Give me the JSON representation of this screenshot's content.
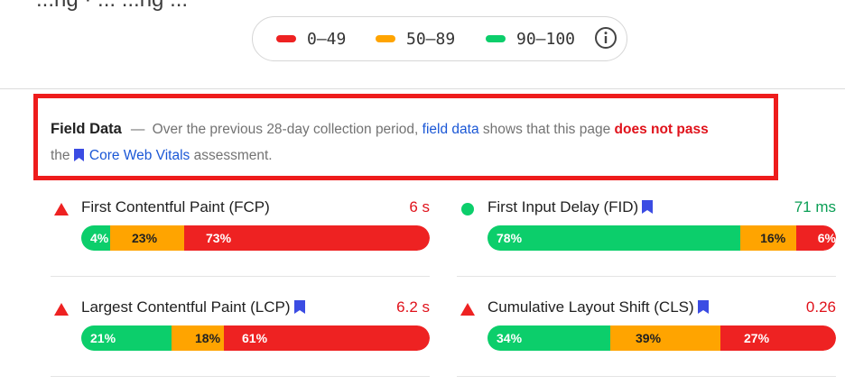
{
  "header_fragment": "...ng · ... ...ng ...",
  "legend": {
    "items": [
      {
        "label": "0–49",
        "color": "#ee2222"
      },
      {
        "label": "50–89",
        "color": "#ffa400"
      },
      {
        "label": "90–100",
        "color": "#0cce6b"
      }
    ],
    "info_icon": "info-icon"
  },
  "field_data": {
    "title": "Field Data",
    "dash": "—",
    "text_before_link": "Over the previous 28-day collection period,",
    "link_text": "field data",
    "text_middle": "shows that this page",
    "fail_text": "does not pass",
    "text_the": "the",
    "cwv_link": "Core Web Vitals",
    "text_end": "assessment."
  },
  "metrics": [
    {
      "name": "First Contentful Paint (FCP)",
      "value": "6 s",
      "status": "poor",
      "core": false,
      "distribution": [
        {
          "label": "4%",
          "pct": 4,
          "band": "good"
        },
        {
          "label": "23%",
          "pct": 23,
          "band": "needs-improvement"
        },
        {
          "label": "73%",
          "pct": 73,
          "band": "poor"
        }
      ]
    },
    {
      "name": "First Input Delay (FID)",
      "value": "71 ms",
      "status": "good",
      "core": true,
      "distribution": [
        {
          "label": "78%",
          "pct": 78,
          "band": "good"
        },
        {
          "label": "16%",
          "pct": 16,
          "band": "needs-improvement"
        },
        {
          "label": "6%",
          "pct": 6,
          "band": "poor"
        }
      ]
    },
    {
      "name": "Largest Contentful Paint (LCP)",
      "value": "6.2 s",
      "status": "poor",
      "core": true,
      "distribution": [
        {
          "label": "21%",
          "pct": 21,
          "band": "good"
        },
        {
          "label": "18%",
          "pct": 18,
          "band": "needs-improvement"
        },
        {
          "label": "61%",
          "pct": 61,
          "band": "poor"
        }
      ]
    },
    {
      "name": "Cumulative Layout Shift (CLS)",
      "value": "0.26",
      "status": "poor",
      "core": true,
      "distribution": [
        {
          "label": "34%",
          "pct": 34,
          "band": "good"
        },
        {
          "label": "39%",
          "pct": 39,
          "band": "needs-improvement"
        },
        {
          "label": "27%",
          "pct": 27,
          "band": "poor"
        }
      ]
    }
  ],
  "colors": {
    "good": "#0cce6b",
    "needs-improvement": "#ffa400",
    "poor": "#ee2222",
    "good_text": "#0a9e55",
    "poor_text": "#e0121b",
    "link": "#1a57d6",
    "bookmark": "#3b4ce3"
  }
}
